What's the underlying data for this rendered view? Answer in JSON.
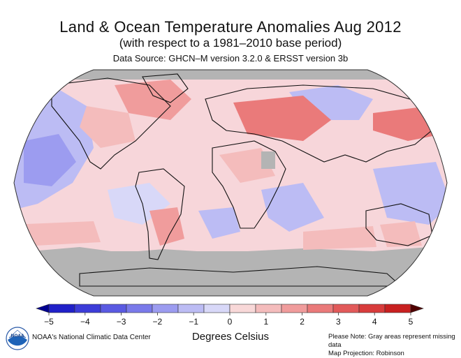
{
  "title": "Land & Ocean Temperature Anomalies Aug 2012",
  "subtitle": "(with respect to a 1981–2010 base period)",
  "data_source": "Data Source: GHCN–M version 3.2.0 & ERSST version 3b",
  "colorbar": {
    "ticks": [
      "−5",
      "−4",
      "−3",
      "−2",
      "−1",
      "0",
      "1",
      "2",
      "3",
      "4",
      "5"
    ],
    "colors": [
      "#2020c8",
      "#3c3cd8",
      "#5a5ae2",
      "#7a7aea",
      "#9c9cf0",
      "#bcbcf4",
      "#d8d8f8",
      "#f8d8d8",
      "#f4bcbc",
      "#f09c9c",
      "#ea7a7a",
      "#e25a5a",
      "#d83c3c",
      "#c82020"
    ],
    "low_cap": "#000090",
    "high_cap": "#500000",
    "label": "Degrees Celsius"
  },
  "map": {
    "projection": "Robinson",
    "missing_color": "#b4b4b4",
    "background_color": "#f6d4d8"
  },
  "logo_text": "NOAA",
  "organization": "NOAA's National Climatic Data Center",
  "notes": [
    "Please Note: Gray areas represent missing data",
    "Map Projection: Robinson"
  ]
}
